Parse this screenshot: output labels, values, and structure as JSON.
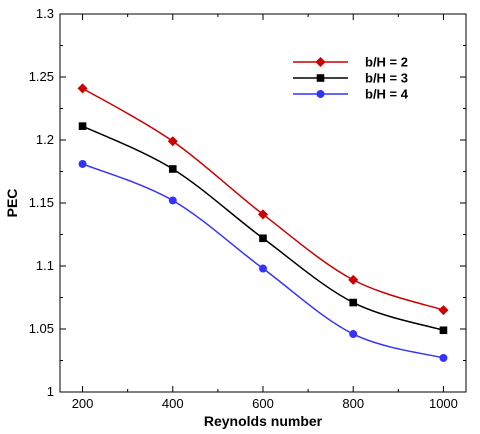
{
  "chart_data": {
    "type": "line",
    "xlabel": "Reynolds number",
    "ylabel": "PEC",
    "x": [
      200,
      400,
      600,
      800,
      1000
    ],
    "xlim": [
      150,
      1050
    ],
    "ylim": [
      1.0,
      1.3
    ],
    "xticks": [
      "200",
      "400",
      "600",
      "800",
      "1000"
    ],
    "yticks": [
      "1",
      "1.05",
      "1.1",
      "1.15",
      "1.2",
      "1.25",
      "1.3"
    ],
    "grid": false,
    "legend_position": "top-right",
    "series": [
      {
        "name": "b/H = 2",
        "color": "#cc0000",
        "marker": "diamond",
        "values": [
          1.241,
          1.199,
          1.141,
          1.089,
          1.065
        ]
      },
      {
        "name": "b/H = 3",
        "color": "#000000",
        "marker": "square",
        "values": [
          1.211,
          1.177,
          1.122,
          1.071,
          1.049
        ]
      },
      {
        "name": "b/H = 4",
        "color": "#3333ff",
        "marker": "circle",
        "values": [
          1.181,
          1.152,
          1.098,
          1.046,
          1.027
        ]
      }
    ]
  }
}
